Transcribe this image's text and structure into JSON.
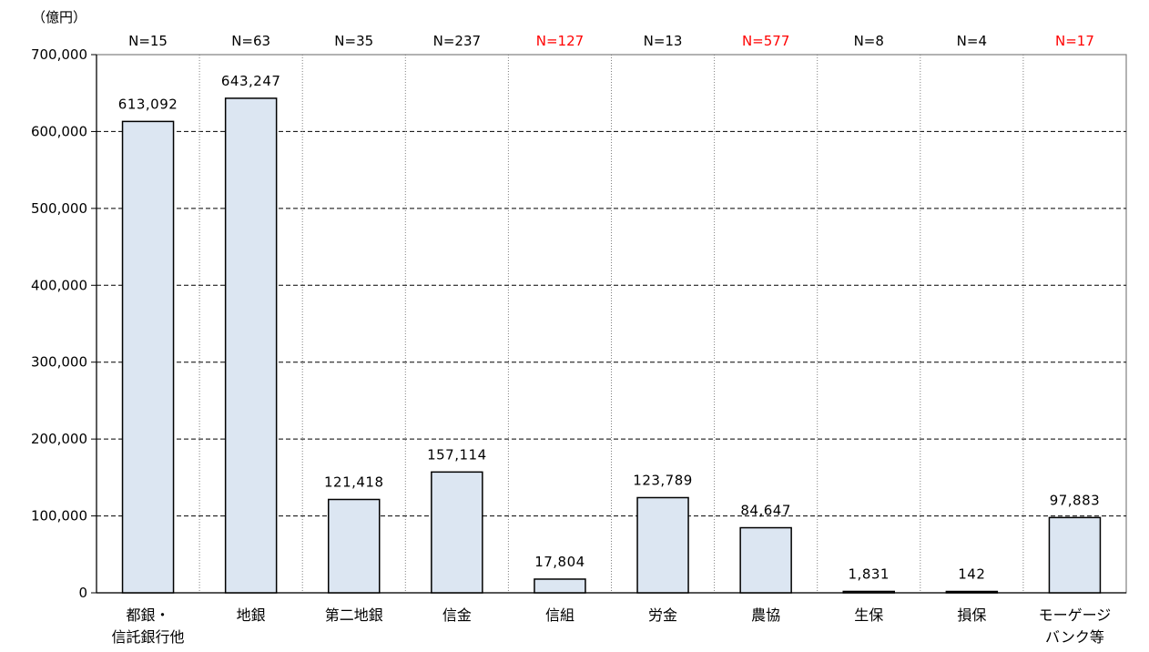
{
  "chart_data": {
    "type": "bar",
    "unit_label": "（億円）",
    "ylim": [
      0,
      700000
    ],
    "yticks": [
      "0",
      "100,000",
      "200,000",
      "300,000",
      "400,000",
      "500,000",
      "600,000",
      "700,000"
    ],
    "categories": [
      [
        "都銀・",
        "信託銀行他"
      ],
      [
        "地銀"
      ],
      [
        "第二地銀"
      ],
      [
        "信金"
      ],
      [
        "信組"
      ],
      [
        "労金"
      ],
      [
        "農協"
      ],
      [
        "生保"
      ],
      [
        "損保"
      ],
      [
        "モーゲージ",
        "バンク等"
      ]
    ],
    "values": [
      613092,
      643247,
      121418,
      157114,
      17804,
      123789,
      84647,
      1831,
      142,
      97883
    ],
    "value_labels": [
      "613,092",
      "643,247",
      "121,418",
      "157,114",
      "17,804",
      "123,789",
      "84,647",
      "1,831",
      "142",
      "97,883"
    ],
    "n_counts": [
      "N=15",
      "N=63",
      "N=35",
      "N=237",
      "N=127",
      "N=13",
      "N=577",
      "N=8",
      "N=4",
      "N=17"
    ],
    "n_highlight": [
      false,
      false,
      false,
      false,
      true,
      false,
      true,
      false,
      false,
      true
    ],
    "grid": true,
    "legend": "none"
  },
  "colors": {
    "bar_fill": "#DCE6F2",
    "bar_stroke": "#000000",
    "highlight_text": "#FF0000",
    "normal_text": "#000000"
  }
}
